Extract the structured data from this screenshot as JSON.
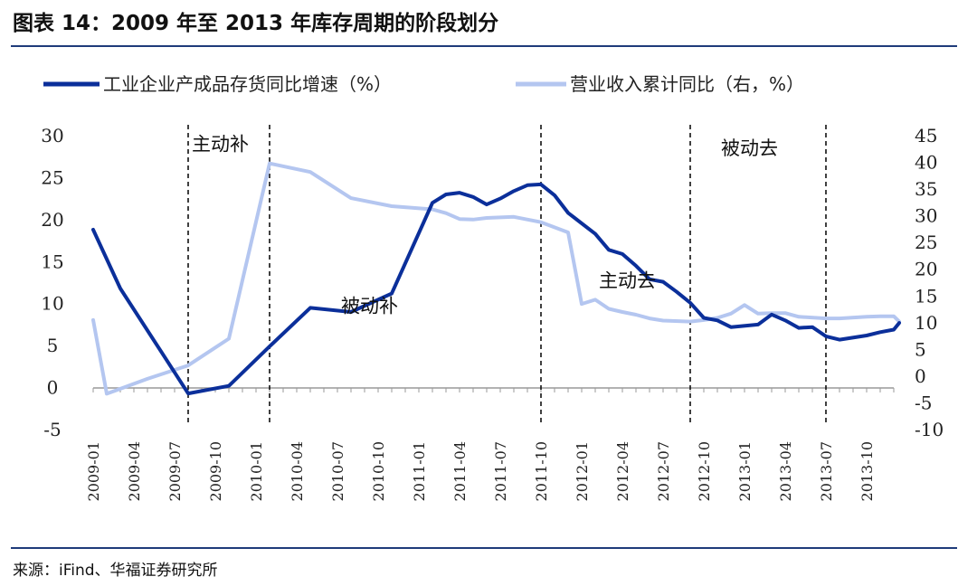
{
  "header": {
    "title": "图表 14：2009 年至 2013 年库存周期的阶段划分"
  },
  "footer": {
    "source": "来源：iFind、华福证券研究所"
  },
  "chart_data": {
    "type": "line",
    "x": [
      "2009-01",
      "2009-02",
      "2009-03",
      "2009-04",
      "2009-05",
      "2009-06",
      "2009-07",
      "2009-08",
      "2009-09",
      "2009-10",
      "2009-11",
      "2009-12",
      "2010-01",
      "2010-02",
      "2010-03",
      "2010-04",
      "2010-05",
      "2010-06",
      "2010-07",
      "2010-08",
      "2010-09",
      "2010-10",
      "2010-11",
      "2010-12",
      "2011-01",
      "2011-02",
      "2011-03",
      "2011-04",
      "2011-05",
      "2011-06",
      "2011-07",
      "2011-08",
      "2011-09",
      "2011-10",
      "2011-11",
      "2011-12",
      "2012-01",
      "2012-02",
      "2012-03",
      "2012-04",
      "2012-05",
      "2012-06",
      "2012-07",
      "2012-08",
      "2012-09",
      "2012-10",
      "2012-11",
      "2012-12",
      "2013-01",
      "2013-02",
      "2013-03",
      "2013-04",
      "2013-05",
      "2013-06",
      "2013-07",
      "2013-08",
      "2013-09",
      "2013-10",
      "2013-11",
      "2013-12"
    ],
    "x_tick_labels": [
      "2009-01",
      "2009-04",
      "2009-07",
      "2009-10",
      "2010-01",
      "2010-04",
      "2010-07",
      "2010-10",
      "2011-01",
      "2011-04",
      "2011-07",
      "2011-10",
      "2012-01",
      "2012-04",
      "2012-07",
      "2012-10",
      "2013-01",
      "2013-04",
      "2013-07",
      "2013-10"
    ],
    "y_left": {
      "lim": [
        -5,
        30
      ],
      "ticks": [
        -5,
        0,
        5,
        10,
        15,
        20,
        25,
        30
      ]
    },
    "y_right": {
      "lim": [
        -10,
        45
      ],
      "ticks": [
        -10,
        -5,
        0,
        5,
        10,
        15,
        20,
        25,
        30,
        35,
        40,
        45
      ]
    },
    "series": [
      {
        "name": "工业企业产成品存货同比增速（%）",
        "axis": "left",
        "color": "#0b2f9a",
        "points": [
          [
            "2009-01",
            18.8
          ],
          [
            "2009-03",
            11.8
          ],
          [
            "2009-06",
            4.3
          ],
          [
            "2009-08",
            -0.7
          ],
          [
            "2009-11",
            0.2
          ],
          [
            "2010-02",
            4.9
          ],
          [
            "2010-05",
            9.5
          ],
          [
            "2010-08",
            9.0
          ],
          [
            "2010-11",
            11.2
          ],
          [
            "2011-02",
            22.0
          ],
          [
            "2011-03",
            23.0
          ],
          [
            "2011-04",
            23.2
          ],
          [
            "2011-05",
            22.7
          ],
          [
            "2011-06",
            21.8
          ],
          [
            "2011-07",
            22.5
          ],
          [
            "2011-08",
            23.4
          ],
          [
            "2011-09",
            24.1
          ],
          [
            "2011-10",
            24.2
          ],
          [
            "2011-11",
            22.9
          ],
          [
            "2011-12",
            20.8
          ],
          [
            "2012-02",
            18.3
          ],
          [
            "2012-03",
            16.4
          ],
          [
            "2012-04",
            15.9
          ],
          [
            "2012-05",
            14.5
          ],
          [
            "2012-06",
            12.9
          ],
          [
            "2012-07",
            12.6
          ],
          [
            "2012-08",
            11.4
          ],
          [
            "2012-09",
            10.1
          ],
          [
            "2012-10",
            8.3
          ],
          [
            "2012-11",
            8.0
          ],
          [
            "2012-12",
            7.2
          ],
          [
            "2013-02",
            7.5
          ],
          [
            "2013-03",
            8.7
          ],
          [
            "2013-04",
            8.0
          ],
          [
            "2013-05",
            7.1
          ],
          [
            "2013-06",
            7.2
          ],
          [
            "2013-07",
            6.1
          ],
          [
            "2013-08",
            5.7
          ],
          [
            "2013-10",
            6.2
          ],
          [
            "2013-11",
            6.6
          ],
          [
            "2013-12",
            6.9
          ],
          [
            "2013-12",
            7.7
          ]
        ]
      },
      {
        "name": "营业收入累计同比（右，%）",
        "axis": "right",
        "color": "#b4c6f0",
        "points": [
          [
            "2009-01",
            10.5
          ],
          [
            "2009-02",
            -3.3
          ],
          [
            "2009-05",
            -0.5
          ],
          [
            "2009-08",
            2.0
          ],
          [
            "2009-11",
            7.0
          ],
          [
            "2010-02",
            39.8
          ],
          [
            "2010-05",
            38.2
          ],
          [
            "2010-08",
            33.3
          ],
          [
            "2010-11",
            31.8
          ],
          [
            "2011-02",
            31.2
          ],
          [
            "2011-03",
            30.5
          ],
          [
            "2011-04",
            29.4
          ],
          [
            "2011-05",
            29.3
          ],
          [
            "2011-06",
            29.6
          ],
          [
            "2011-08",
            29.8
          ],
          [
            "2011-10",
            28.8
          ],
          [
            "2011-12",
            26.9
          ],
          [
            "2012-01",
            13.5
          ],
          [
            "2012-02",
            14.3
          ],
          [
            "2012-03",
            12.6
          ],
          [
            "2012-04",
            12.0
          ],
          [
            "2012-05",
            11.5
          ],
          [
            "2012-06",
            10.8
          ],
          [
            "2012-07",
            10.4
          ],
          [
            "2012-09",
            10.2
          ],
          [
            "2012-10",
            10.5
          ],
          [
            "2012-11",
            10.9
          ],
          [
            "2012-12",
            11.7
          ],
          [
            "2013-01",
            13.3
          ],
          [
            "2013-02",
            11.7
          ],
          [
            "2013-03",
            11.8
          ],
          [
            "2013-04",
            11.8
          ],
          [
            "2013-05",
            11.1
          ],
          [
            "2013-07",
            10.8
          ],
          [
            "2013-08",
            10.8
          ],
          [
            "2013-10",
            11.1
          ],
          [
            "2013-11",
            11.2
          ],
          [
            "2013-12",
            11.2
          ],
          [
            "2013-12",
            10.2
          ]
        ]
      }
    ],
    "phase_boundaries": [
      "2009-08",
      "2010-02",
      "2011-10",
      "2012-09",
      "2013-07"
    ],
    "phase_labels": [
      {
        "text": "主动补",
        "x": "2009-08",
        "y_left": 29.1
      },
      {
        "text": "被动补",
        "x": "2010-07",
        "y_left": 9.8
      },
      {
        "text": "主动去",
        "x": "2012-02",
        "y_left": 12.8
      },
      {
        "text": "被动去",
        "x": "2012-11",
        "y_left": 28.6
      }
    ],
    "legend_position": "top-left",
    "grid": false
  }
}
